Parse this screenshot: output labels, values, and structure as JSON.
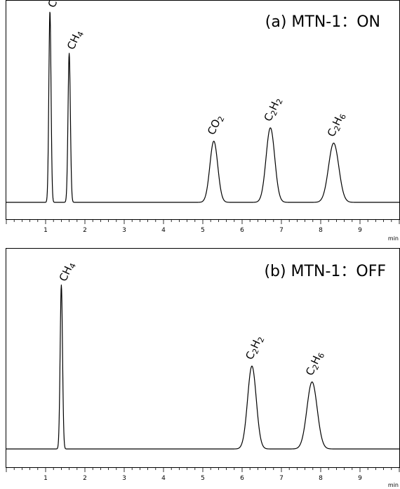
{
  "chart_data": [
    {
      "type": "line",
      "title": "(a) MTN-1：ON",
      "xlabel": "min",
      "ylabel": "",
      "xlim": [
        0.0,
        10.0
      ],
      "ylim": [
        0,
        100
      ],
      "xticks": [
        1,
        2,
        3,
        4,
        5,
        6,
        7,
        8,
        9
      ],
      "minor_tick_step": 0.2,
      "grid": false,
      "baseline": 0,
      "peaks": [
        {
          "name": "CO",
          "label": [
            "CO"
          ],
          "rt": 1.11,
          "height": 100,
          "sigma": 0.028
        },
        {
          "name": "CH4",
          "label": [
            "CH",
            "4"
          ],
          "rt": 1.6,
          "height": 78,
          "sigma": 0.03
        },
        {
          "name": "CO2",
          "label": [
            "CO",
            "2"
          ],
          "rt": 5.28,
          "height": 32,
          "sigma": 0.1
        },
        {
          "name": "C2H2",
          "label": [
            "C",
            "2",
            "H",
            "2"
          ],
          "rt": 6.72,
          "height": 39,
          "sigma": 0.11
        },
        {
          "name": "C2H6",
          "label": [
            "C",
            "2",
            "H",
            "6"
          ],
          "rt": 8.33,
          "height": 31,
          "sigma": 0.13
        }
      ]
    },
    {
      "type": "line",
      "title": "(b) MTN-1：OFF",
      "xlabel": "min",
      "ylabel": "",
      "xlim": [
        0.0,
        10.0
      ],
      "ylim": [
        0,
        100
      ],
      "xticks": [
        1,
        2,
        3,
        4,
        5,
        6,
        7,
        8,
        9
      ],
      "minor_tick_step": 0.2,
      "grid": false,
      "baseline": 0,
      "peaks": [
        {
          "name": "CH4",
          "label": [
            "CH",
            "4"
          ],
          "rt": 1.4,
          "height": 93,
          "sigma": 0.03
        },
        {
          "name": "C2H2",
          "label": [
            "C",
            "2",
            "H",
            "2"
          ],
          "rt": 6.25,
          "height": 47,
          "sigma": 0.11
        },
        {
          "name": "C2H6",
          "label": [
            "C",
            "2",
            "H",
            "6"
          ],
          "rt": 7.78,
          "height": 38,
          "sigma": 0.13
        }
      ]
    }
  ]
}
